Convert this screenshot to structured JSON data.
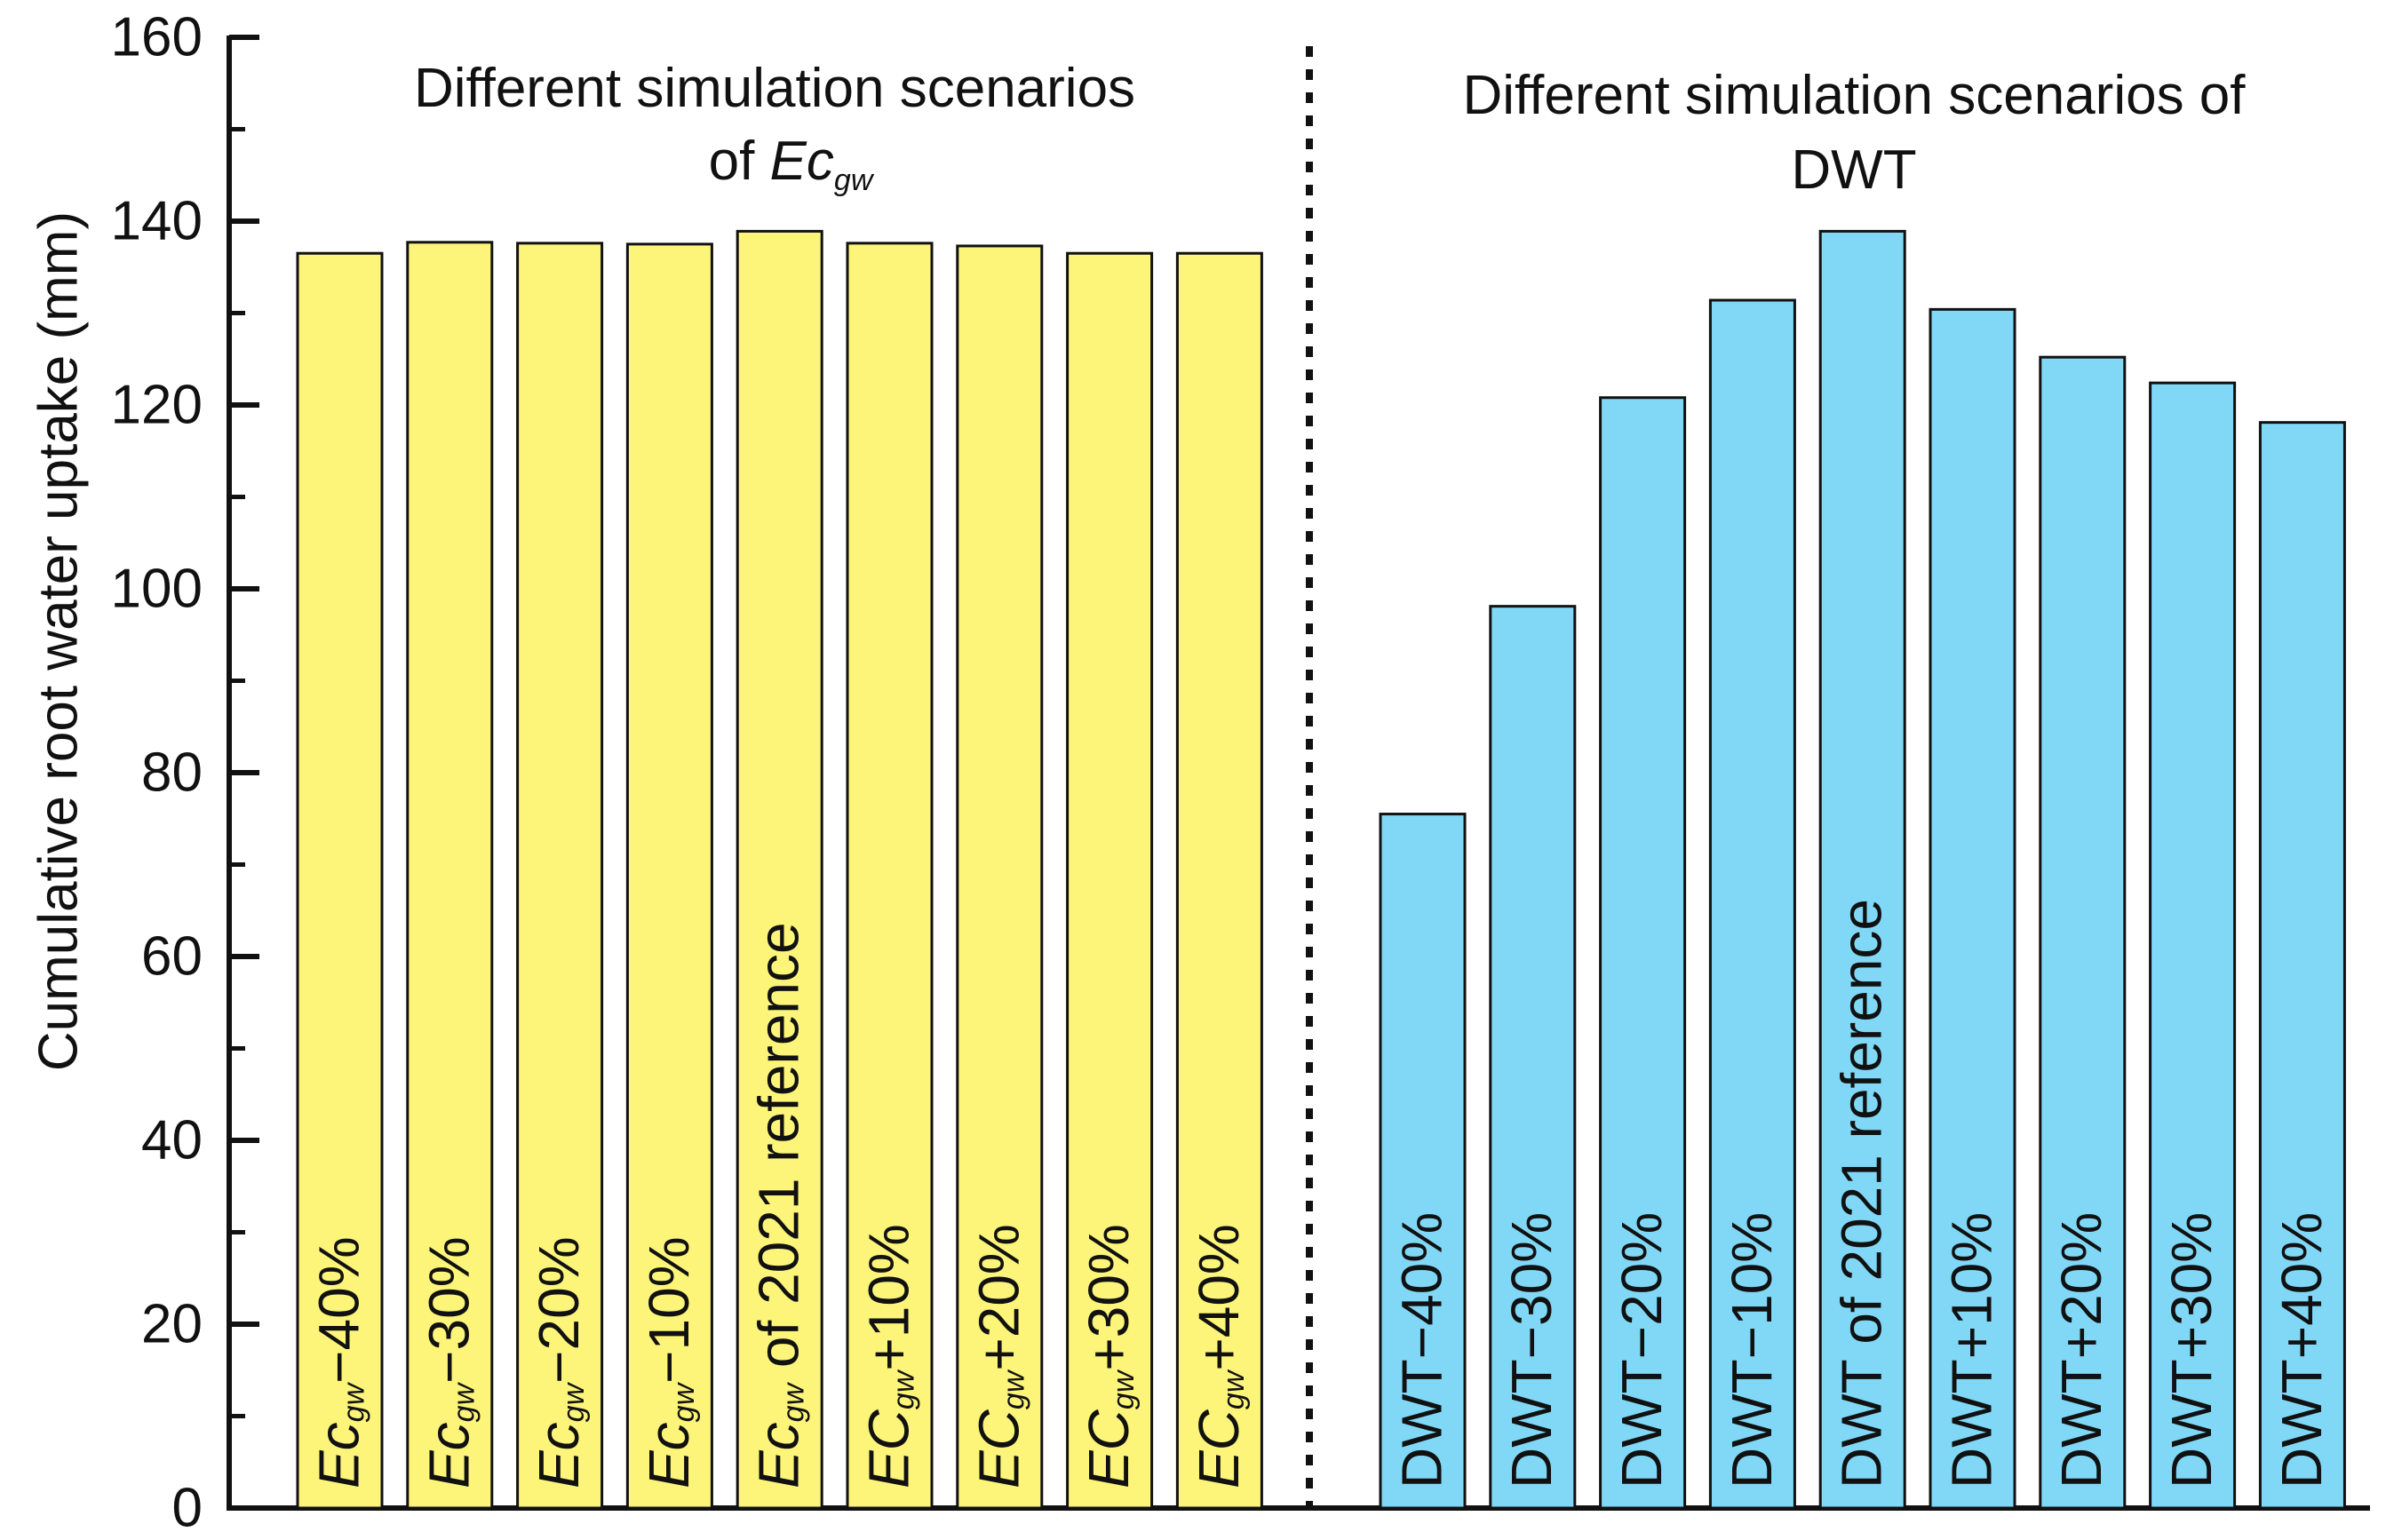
{
  "chart_data": {
    "type": "bar",
    "ylabel": "Cumulative root water uptake (mm)",
    "ylim": [
      0,
      160
    ],
    "yticks": [
      0,
      20,
      40,
      60,
      80,
      100,
      120,
      140,
      160
    ],
    "colors": {
      "ecgw": "#fdf57a",
      "dwt": "#80d8f6",
      "outline": "#111111"
    },
    "groups": [
      {
        "id": "ecgw",
        "title_line1": "Different simulation scenarios",
        "title_line2_prefix": "of ",
        "title_symbol": "Ec",
        "title_symbol_sub": "gw",
        "bars": [
          {
            "symbol": "Ec",
            "sub": "gw",
            "suffix": "−40%",
            "value": 136.5
          },
          {
            "symbol": "Ec",
            "sub": "gw",
            "suffix": "−30%",
            "value": 137.7
          },
          {
            "symbol": "Ec",
            "sub": "gw",
            "suffix": "−20%",
            "value": 137.6
          },
          {
            "symbol": "Ec",
            "sub": "gw",
            "suffix": "−10%",
            "value": 137.5
          },
          {
            "symbol": "Ec",
            "sub": "gw",
            "suffix": " of 2021 reference",
            "value": 138.9
          },
          {
            "symbol": "EC",
            "sub": "gw",
            "suffix": "+10%",
            "value": 137.6
          },
          {
            "symbol": "EC",
            "sub": "gw",
            "suffix": "+20%",
            "value": 137.3
          },
          {
            "symbol": "EC",
            "sub": "gw",
            "suffix": "+30%",
            "value": 136.5
          },
          {
            "symbol": "EC",
            "sub": "gw",
            "suffix": "+40%",
            "value": 136.5
          }
        ]
      },
      {
        "id": "dwt",
        "title_line1": "Different simulation scenarios of",
        "title_line2": "DWT",
        "bars": [
          {
            "label": "DWT−40%",
            "value": 75.5
          },
          {
            "label": "DWT−30%",
            "value": 98.1
          },
          {
            "label": "DWT−20%",
            "value": 120.8
          },
          {
            "label": "DWT−10%",
            "value": 131.4
          },
          {
            "label": "DWT of 2021 reference",
            "value": 138.9
          },
          {
            "label": "DWT+10%",
            "value": 130.4
          },
          {
            "label": "DWT+20%",
            "value": 125.2
          },
          {
            "label": "DWT+30%",
            "value": 122.4
          },
          {
            "label": "DWT+40%",
            "value": 118.1
          }
        ]
      }
    ]
  }
}
